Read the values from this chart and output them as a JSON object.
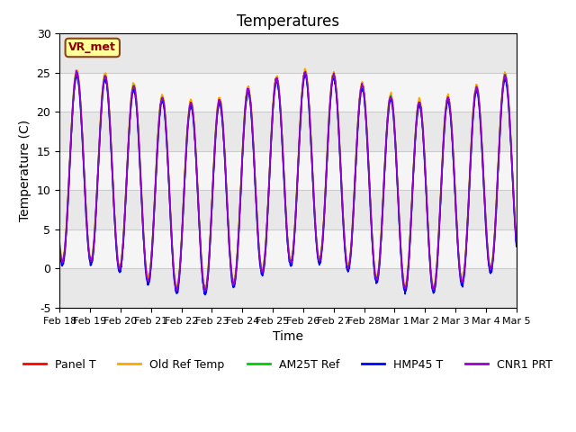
{
  "title": "Temperatures",
  "xlabel": "Time",
  "ylabel": "Temperature (C)",
  "ylim": [
    -5,
    30
  ],
  "annotation_text": "VR_met",
  "annotation_color": "#8B0000",
  "annotation_bg": "#FFFF99",
  "annotation_border": "#8B4513",
  "series_names": [
    "Panel T",
    "Old Ref Temp",
    "AM25T Ref",
    "HMP45 T",
    "CNR1 PRT"
  ],
  "series_colors": [
    "#FF0000",
    "#FFA500",
    "#00CC00",
    "#0000FF",
    "#9900CC"
  ],
  "series_lw": [
    1.2,
    1.2,
    1.2,
    1.2,
    1.2
  ],
  "xtick_labels": [
    "Feb 18",
    "Feb 19",
    "Feb 20",
    "Feb 21",
    "Feb 22",
    "Feb 23",
    "Feb 24",
    "Feb 25",
    "Feb 26",
    "Feb 27",
    "Feb 28",
    "Mar 1",
    "Mar 2",
    "Mar 3",
    "Mar 4",
    "Mar 5"
  ],
  "ytick_labels": [
    -5,
    0,
    5,
    10,
    15,
    20,
    25,
    30
  ],
  "grid_color": "#CCCCCC",
  "plot_bg": "#F5F5F5",
  "band_color": "#DCDCDC",
  "legend_ncol": 5,
  "n_days": 16
}
